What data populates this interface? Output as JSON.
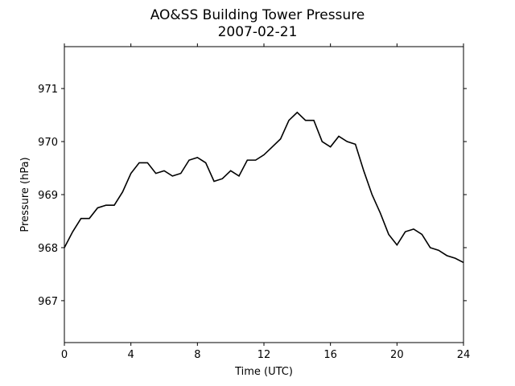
{
  "chart_data": {
    "type": "line",
    "title": "AO&SS Building Tower Pressure",
    "subtitle": "2007-02-21",
    "x_label": "Time (UTC)",
    "y_label": "Pressure (hPa)",
    "x": [
      0,
      0.5,
      1,
      1.5,
      2,
      2.5,
      3,
      3.5,
      4,
      4.5,
      5,
      5.5,
      6,
      6.5,
      7,
      7.5,
      8,
      8.5,
      9,
      9.5,
      10,
      10.5,
      11,
      11.5,
      12,
      12.5,
      13,
      13.5,
      14,
      14.5,
      15,
      15.5,
      16,
      16.5,
      17,
      17.5,
      18,
      18.5,
      19,
      19.5,
      20,
      20.5,
      21,
      21.5,
      22,
      22.5,
      23,
      23.5,
      24
    ],
    "series": [
      {
        "name": "Pressure",
        "color": "#000000",
        "values": [
          968.0,
          968.3,
          968.55,
          968.55,
          968.75,
          968.8,
          968.8,
          969.05,
          969.4,
          969.6,
          969.6,
          969.4,
          969.45,
          969.35,
          969.4,
          969.65,
          969.7,
          969.6,
          969.25,
          969.3,
          969.45,
          969.35,
          969.65,
          969.65,
          969.75,
          969.9,
          970.05,
          970.4,
          970.55,
          970.4,
          970.4,
          970.0,
          969.9,
          970.1,
          970.0,
          969.95,
          969.45,
          969.0,
          968.65,
          968.25,
          968.05,
          968.3,
          968.35,
          968.25,
          968.0,
          967.95,
          967.85,
          967.8,
          967.72
        ]
      }
    ],
    "xlim": [
      0,
      24
    ],
    "xticks": [
      0,
      4,
      8,
      12,
      16,
      20,
      24
    ],
    "ylim": [
      966.21,
      971.79
    ],
    "yticks": [
      967,
      968,
      969,
      970,
      971
    ],
    "grid": false
  }
}
